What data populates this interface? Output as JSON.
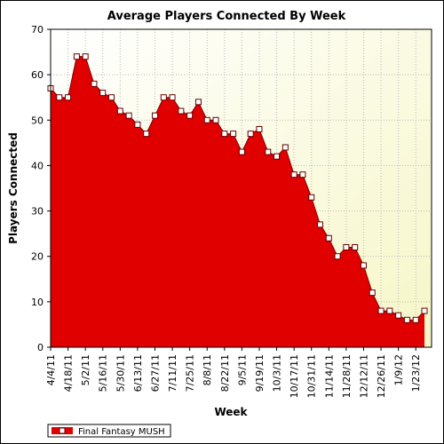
{
  "chart_data": {
    "type": "area",
    "title": "Average Players Connected By Week",
    "x_label": "Week",
    "y_label": "Players Connected",
    "categories": [
      "4/4/11",
      null,
      "4/18/11",
      null,
      "5/2/11",
      null,
      "5/16/11",
      null,
      "5/30/11",
      null,
      "6/13/11",
      null,
      "6/27/11",
      null,
      "7/11/11",
      null,
      "7/25/11",
      null,
      "8/8/11",
      null,
      "8/22/11",
      null,
      "9/5/11",
      null,
      "9/19/11",
      null,
      "10/3/11",
      null,
      "10/17/11",
      null,
      "10/31/11",
      null,
      "11/14/11",
      null,
      "11/28/11",
      null,
      "12/12/11",
      null,
      "12/26/11",
      null,
      "1/9/12",
      null,
      "1/23/12",
      null
    ],
    "series": [
      {
        "name": "Final Fantasy MUSH",
        "color": "#e00000",
        "values": [
          57,
          55,
          55,
          64,
          64,
          58,
          56,
          55,
          52,
          51,
          49,
          47,
          51,
          55,
          55,
          52,
          51,
          54,
          50,
          50,
          47,
          47,
          43,
          47,
          48,
          43,
          42,
          44,
          38,
          38,
          33,
          27,
          24,
          20,
          22,
          22,
          18,
          12,
          8,
          8,
          7,
          6,
          6,
          8
        ]
      }
    ],
    "ylim": [
      0,
      70
    ],
    "yticks": [
      0,
      10,
      20,
      30,
      40,
      50,
      60,
      70
    ],
    "grid": true,
    "legend": "bottom-left"
  }
}
